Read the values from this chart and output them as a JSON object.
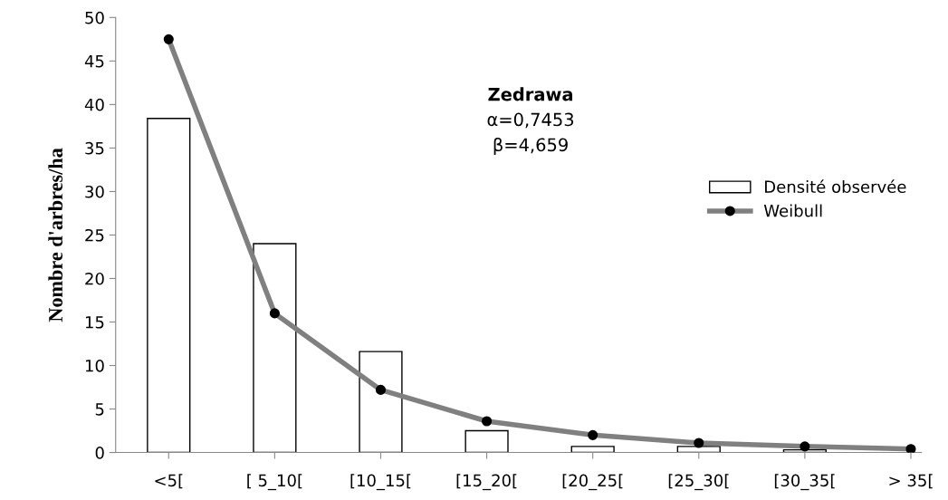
{
  "chart_data": {
    "type": "bar",
    "ylabel": "Nombre d'arbres/ha",
    "categories": [
      "<5[",
      "[ 5_10[",
      "[10_15[",
      "[15_20[",
      "[20_25[",
      "[25_30[",
      "[30_35[",
      "> 35["
    ],
    "series": [
      {
        "name": "Densité observée",
        "color": "#ffffff",
        "values": [
          38.4,
          24.0,
          11.6,
          2.5,
          0.7,
          0.7,
          0.3,
          null
        ]
      },
      {
        "name": "Weibull",
        "type": "line",
        "color": "#808080",
        "marker": "circle",
        "values": [
          47.5,
          16.0,
          7.2,
          3.6,
          2.0,
          1.1,
          0.7,
          0.4
        ]
      }
    ],
    "annotations": [
      "Zedrawa",
      "α=0,7453",
      "β=4,659"
    ],
    "ylim": [
      0,
      50
    ],
    "yticks": [
      0,
      5,
      10,
      15,
      20,
      25,
      30,
      35,
      40,
      45,
      50
    ],
    "grid": false,
    "legend": "right"
  }
}
